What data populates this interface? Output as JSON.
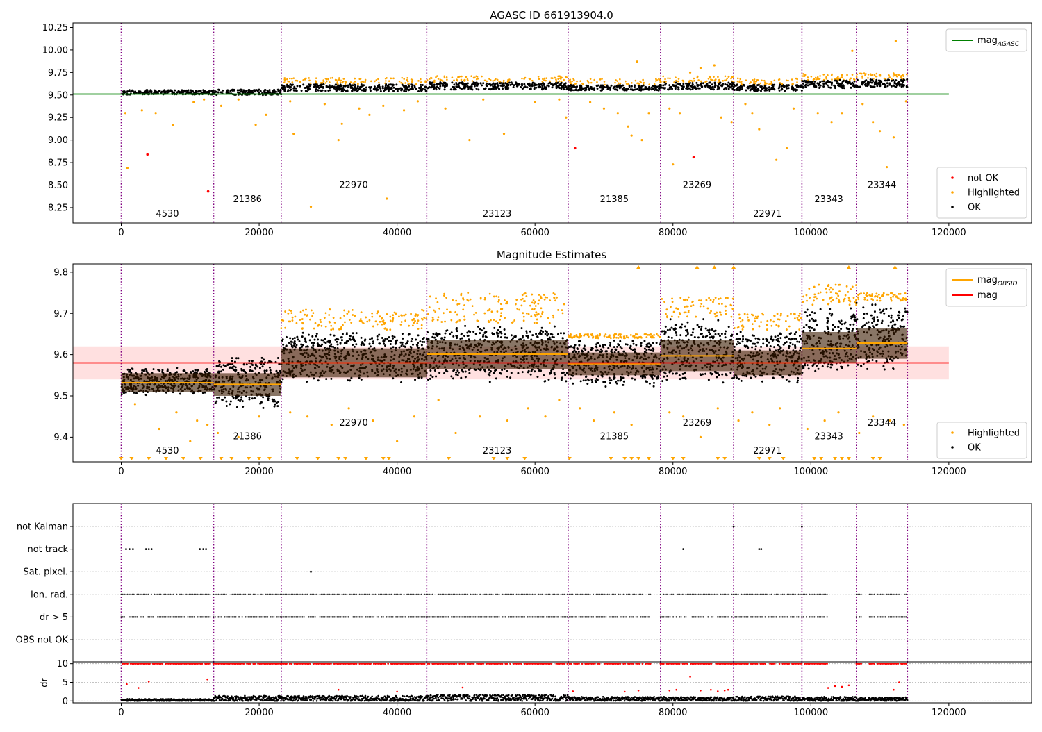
{
  "chart_data": [
    {
      "type": "scatter",
      "title": "AGASC ID 661913904.0",
      "xlim": [
        -7000,
        132000
      ],
      "ylim": [
        8.08,
        10.3
      ],
      "xticks": [
        0,
        20000,
        40000,
        60000,
        80000,
        100000,
        120000
      ],
      "yticks": [
        8.25,
        8.5,
        8.75,
        9.0,
        9.25,
        9.5,
        9.75,
        10.0,
        10.25
      ],
      "ytick_labels": [
        "8.25",
        "8.50",
        "8.75",
        "9.00",
        "9.25",
        "9.50",
        "9.75",
        "10.00",
        "10.25"
      ],
      "boundaries": [
        0,
        13400,
        23200,
        44300,
        64800,
        78200,
        88800,
        98700,
        106600,
        114000
      ],
      "obsids": [
        {
          "label": "4530",
          "x": 6700,
          "y": 8.15
        },
        {
          "label": "21386",
          "x": 18300,
          "y": 8.31
        },
        {
          "label": "22970",
          "x": 33700,
          "y": 8.47
        },
        {
          "label": "23123",
          "x": 54500,
          "y": 8.15
        },
        {
          "label": "21385",
          "x": 71500,
          "y": 8.31
        },
        {
          "label": "23269",
          "x": 83500,
          "y": 8.47
        },
        {
          "label": "22971",
          "x": 93700,
          "y": 8.15
        },
        {
          "label": "23343",
          "x": 102600,
          "y": 8.31
        },
        {
          "label": "23344",
          "x": 110300,
          "y": 8.47
        }
      ],
      "mag_agasc": 9.51,
      "mag_agasc_range": [
        -7000,
        120000
      ],
      "segments": [
        {
          "x0": 0,
          "x1": 13400,
          "y": 9.53,
          "spread": 0.025
        },
        {
          "x0": 13400,
          "x1": 23200,
          "y": 9.53,
          "spread": 0.03
        },
        {
          "x0": 23200,
          "x1": 44300,
          "y": 9.58,
          "spread": 0.04
        },
        {
          "x0": 44300,
          "x1": 64800,
          "y": 9.6,
          "spread": 0.04
        },
        {
          "x0": 64800,
          "x1": 78200,
          "y": 9.58,
          "spread": 0.03
        },
        {
          "x0": 78200,
          "x1": 88800,
          "y": 9.6,
          "spread": 0.04
        },
        {
          "x0": 88800,
          "x1": 98700,
          "y": 9.58,
          "spread": 0.035
        },
        {
          "x0": 98700,
          "x1": 106600,
          "y": 9.62,
          "spread": 0.045
        },
        {
          "x0": 106600,
          "x1": 114000,
          "y": 9.63,
          "spread": 0.045
        }
      ],
      "highlighted_points": [
        [
          600,
          9.3
        ],
        [
          900,
          8.69
        ],
        [
          3000,
          9.33
        ],
        [
          5000,
          9.3
        ],
        [
          7500,
          9.17
        ],
        [
          10500,
          9.42
        ],
        [
          12000,
          9.45
        ],
        [
          14500,
          9.38
        ],
        [
          17000,
          9.45
        ],
        [
          19500,
          9.17
        ],
        [
          21000,
          9.28
        ],
        [
          24500,
          9.43
        ],
        [
          25000,
          9.07
        ],
        [
          27500,
          8.26
        ],
        [
          29500,
          9.4
        ],
        [
          31500,
          9.0
        ],
        [
          32000,
          9.18
        ],
        [
          34500,
          9.35
        ],
        [
          36000,
          9.28
        ],
        [
          38000,
          9.38
        ],
        [
          38500,
          8.35
        ],
        [
          41000,
          9.33
        ],
        [
          43000,
          9.43
        ],
        [
          47000,
          9.35
        ],
        [
          50500,
          9.0
        ],
        [
          52500,
          9.45
        ],
        [
          55500,
          9.07
        ],
        [
          60000,
          9.42
        ],
        [
          63500,
          9.45
        ],
        [
          64500,
          9.25
        ],
        [
          68000,
          9.42
        ],
        [
          70000,
          9.35
        ],
        [
          72000,
          9.3
        ],
        [
          73500,
          9.15
        ],
        [
          74000,
          9.05
        ],
        [
          74800,
          9.87
        ],
        [
          75500,
          9.0
        ],
        [
          76500,
          9.3
        ],
        [
          79500,
          9.35
        ],
        [
          80000,
          8.73
        ],
        [
          81000,
          9.3
        ],
        [
          82500,
          9.75
        ],
        [
          84000,
          9.8
        ],
        [
          86000,
          9.83
        ],
        [
          87000,
          9.25
        ],
        [
          88500,
          9.2
        ],
        [
          90500,
          9.4
        ],
        [
          91500,
          9.3
        ],
        [
          92500,
          9.12
        ],
        [
          95000,
          8.78
        ],
        [
          96500,
          8.91
        ],
        [
          97500,
          9.35
        ],
        [
          101000,
          9.3
        ],
        [
          103000,
          9.2
        ],
        [
          104500,
          9.3
        ],
        [
          106000,
          9.99
        ],
        [
          107500,
          9.4
        ],
        [
          109000,
          9.2
        ],
        [
          110000,
          9.1
        ],
        [
          111000,
          8.7
        ],
        [
          112000,
          9.03
        ],
        [
          112300,
          10.1
        ],
        [
          113800,
          9.43
        ]
      ],
      "not_ok_points": [
        [
          3800,
          8.84
        ],
        [
          12600,
          8.43
        ],
        [
          65800,
          8.91
        ],
        [
          83000,
          8.81
        ]
      ],
      "legends": {
        "line": [
          {
            "label": "mag",
            "sub": "AGASC",
            "color": "#008000"
          }
        ],
        "points": [
          {
            "label": "not OK",
            "color": "#ff0000"
          },
          {
            "label": "Highlighted",
            "color": "#ffa500"
          },
          {
            "label": "OK",
            "color": "#000000"
          }
        ]
      }
    },
    {
      "type": "scatter",
      "title": "Magnitude Estimates",
      "xlim": [
        -7000,
        132000
      ],
      "ylim": [
        9.34,
        9.82
      ],
      "xticks": [
        0,
        20000,
        40000,
        60000,
        80000,
        100000,
        120000
      ],
      "yticks": [
        9.4,
        9.5,
        9.6,
        9.7,
        9.8
      ],
      "ytick_labels": [
        "9.4",
        "9.5",
        "9.6",
        "9.7",
        "9.8"
      ],
      "boundaries": [
        0,
        13400,
        23200,
        44300,
        64800,
        78200,
        88800,
        98700,
        106600,
        114000
      ],
      "obsids": [
        {
          "label": "4530",
          "x": 6700,
          "y": 9.36
        },
        {
          "label": "21386",
          "x": 18300,
          "y": 9.395
        },
        {
          "label": "22970",
          "x": 33700,
          "y": 9.428
        },
        {
          "label": "23123",
          "x": 54500,
          "y": 9.36
        },
        {
          "label": "21385",
          "x": 71500,
          "y": 9.395
        },
        {
          "label": "23269",
          "x": 83500,
          "y": 9.428
        },
        {
          "label": "22971",
          "x": 93700,
          "y": 9.36
        },
        {
          "label": "23343",
          "x": 102600,
          "y": 9.395
        },
        {
          "label": "23344",
          "x": 110300,
          "y": 9.428
        }
      ],
      "mag": 9.58,
      "mag_band": [
        9.54,
        9.62
      ],
      "mag_range": [
        -7000,
        120000
      ],
      "segments": [
        {
          "x0": 0,
          "x1": 13400,
          "mean": 9.532,
          "lo": 9.51,
          "hi": 9.555,
          "ok_lo": 9.5,
          "ok_hi": 9.57,
          "hl_hi": 9.59
        },
        {
          "x0": 13400,
          "x1": 23200,
          "mean": 9.528,
          "lo": 9.5,
          "hi": 9.555,
          "ok_lo": 9.465,
          "ok_hi": 9.6,
          "hl_hi": 9.62
        },
        {
          "x0": 23200,
          "x1": 44300,
          "mean": 9.58,
          "lo": 9.545,
          "hi": 9.615,
          "ok_lo": 9.53,
          "ok_hi": 9.66,
          "hl_hi": 9.71
        },
        {
          "x0": 44300,
          "x1": 64800,
          "mean": 9.601,
          "lo": 9.565,
          "hi": 9.635,
          "ok_lo": 9.53,
          "ok_hi": 9.675,
          "hl_hi": 9.75
        },
        {
          "x0": 64800,
          "x1": 78200,
          "mean": 9.578,
          "lo": 9.55,
          "hi": 9.605,
          "ok_lo": 9.52,
          "ok_hi": 9.64,
          "hl_hi": 9.65
        },
        {
          "x0": 78200,
          "x1": 88800,
          "mean": 9.597,
          "lo": 9.56,
          "hi": 9.635,
          "ok_lo": 9.53,
          "ok_hi": 9.69,
          "hl_hi": 9.74
        },
        {
          "x0": 88800,
          "x1": 98700,
          "mean": 9.58,
          "lo": 9.55,
          "hi": 9.61,
          "ok_lo": 9.53,
          "ok_hi": 9.66,
          "hl_hi": 9.7
        },
        {
          "x0": 98700,
          "x1": 106600,
          "mean": 9.615,
          "lo": 9.58,
          "hi": 9.655,
          "ok_lo": 9.55,
          "ok_hi": 9.72,
          "hl_hi": 9.77
        },
        {
          "x0": 106600,
          "x1": 114000,
          "mean": 9.628,
          "lo": 9.59,
          "hi": 9.665,
          "ok_lo": 9.56,
          "ok_hi": 9.73,
          "hl_hi": 9.75
        }
      ],
      "highlighted_outliers": [
        [
          2000,
          9.48
        ],
        [
          5500,
          9.42
        ],
        [
          8000,
          9.46
        ],
        [
          10000,
          9.39
        ],
        [
          11000,
          9.44
        ],
        [
          12500,
          9.43
        ],
        [
          14000,
          9.41
        ],
        [
          17000,
          9.4
        ],
        [
          20000,
          9.45
        ],
        [
          24500,
          9.46
        ],
        [
          27000,
          9.45
        ],
        [
          30500,
          9.43
        ],
        [
          33000,
          9.47
        ],
        [
          36500,
          9.44
        ],
        [
          40000,
          9.39
        ],
        [
          42500,
          9.45
        ],
        [
          46000,
          9.49
        ],
        [
          48500,
          9.41
        ],
        [
          52000,
          9.45
        ],
        [
          56000,
          9.44
        ],
        [
          59000,
          9.47
        ],
        [
          61500,
          9.45
        ],
        [
          63500,
          9.49
        ],
        [
          66500,
          9.47
        ],
        [
          68500,
          9.44
        ],
        [
          71500,
          9.46
        ],
        [
          74000,
          9.43
        ],
        [
          79500,
          9.46
        ],
        [
          81500,
          9.45
        ],
        [
          84000,
          9.4
        ],
        [
          86500,
          9.47
        ],
        [
          89500,
          9.44
        ],
        [
          91500,
          9.46
        ],
        [
          94000,
          9.43
        ],
        [
          95500,
          9.47
        ],
        [
          99500,
          9.42
        ],
        [
          102000,
          9.44
        ],
        [
          104000,
          9.46
        ],
        [
          107000,
          9.41
        ],
        [
          109000,
          9.45
        ],
        [
          111500,
          9.44
        ],
        [
          113500,
          9.43
        ]
      ],
      "below_markers": [
        0,
        1500,
        4000,
        6500,
        9000,
        11500,
        14500,
        16000,
        18500,
        20000,
        21500,
        25500,
        28500,
        31500,
        32500,
        35500,
        38000,
        38800,
        47500,
        54000,
        56000,
        58500,
        65000,
        71000,
        73000,
        74000,
        75000,
        76500,
        80000,
        81500,
        86500,
        87500,
        92500,
        94000,
        96000,
        100500,
        101500,
        103500,
        104500,
        105500,
        109000,
        110000
      ],
      "above_markers": [
        75000,
        83500,
        86000,
        88800,
        105500,
        112200
      ],
      "legends": {
        "line": [
          {
            "label": "mag",
            "sub": "OBSID",
            "color": "#ffa500"
          },
          {
            "label": "mag",
            "sub": "",
            "color": "#ff0000"
          }
        ],
        "points": [
          {
            "label": "Highlighted",
            "color": "#ffa500"
          },
          {
            "label": "OK",
            "color": "#000000"
          }
        ]
      }
    },
    {
      "type": "scatter",
      "title": "",
      "xlim": [
        -7000,
        132000
      ],
      "categories": [
        "not Kalman",
        "not track",
        "Sat. pixel.",
        "Ion. rad.",
        "dr > 5",
        "OBS not OK"
      ],
      "boundaries": [
        0,
        13400,
        23200,
        44300,
        64800,
        78200,
        88800,
        98700,
        106600,
        114000
      ],
      "flag_runs": {
        "Ion. rad.": [
          [
            0,
            13000
          ],
          [
            13400,
            64800
          ],
          [
            65000,
            76800
          ],
          [
            78200,
            102500
          ],
          [
            106600,
            107500
          ],
          [
            108500,
            114000
          ]
        ],
        "dr > 5": [
          [
            0,
            13000
          ],
          [
            13400,
            64800
          ],
          [
            65000,
            76800
          ],
          [
            78200,
            102500
          ],
          [
            106600,
            107500
          ],
          [
            108500,
            114000
          ]
        ]
      },
      "flag_points": {
        "not Kalman": [
          88800,
          98700
        ],
        "not track": [
          700,
          1200,
          1700,
          3600,
          4000,
          4400,
          11400,
          11900,
          12300,
          81500,
          92500,
          92800
        ],
        "Sat. pixel.": [
          27500
        ]
      }
    },
    {
      "type": "scatter",
      "xlim": [
        -7000,
        132000
      ],
      "ylim": [
        -0.5,
        10.5
      ],
      "ylabel": "dr",
      "yticks": [
        0,
        5,
        10
      ],
      "ytick_labels": [
        "0",
        "5",
        "10"
      ],
      "xticks": [
        0,
        20000,
        40000,
        60000,
        80000,
        100000,
        120000
      ],
      "xtick_labels": [
        "0",
        "20000",
        "40000",
        "60000",
        "80000",
        "100000",
        "120000"
      ],
      "boundaries": [
        0,
        13400,
        23200,
        44300,
        64800,
        78200,
        88800,
        98700,
        106600,
        114000
      ],
      "dr_ok_levels": [
        0.4,
        1.0,
        1.0,
        1.2,
        0.8,
        0.8,
        0.9,
        0.8,
        0.7
      ],
      "dr_ten_runs": [
        [
          0,
          13000
        ],
        [
          13400,
          64800
        ],
        [
          65000,
          76800
        ],
        [
          78200,
          102500
        ],
        [
          106600,
          107500
        ],
        [
          108500,
          114000
        ]
      ],
      "dr_mid_points": [
        [
          800,
          4.5
        ],
        [
          2500,
          3.5
        ],
        [
          4000,
          5.2
        ],
        [
          12500,
          5.8
        ],
        [
          31500,
          3.0
        ],
        [
          40000,
          2.5
        ],
        [
          49500,
          3.6
        ],
        [
          65500,
          2.6
        ],
        [
          73000,
          2.5
        ],
        [
          75000,
          2.8
        ],
        [
          79500,
          2.8
        ],
        [
          80500,
          3.0
        ],
        [
          82500,
          6.5
        ],
        [
          84000,
          2.8
        ],
        [
          85500,
          3.0
        ],
        [
          86500,
          2.6
        ],
        [
          87500,
          2.8
        ],
        [
          88000,
          3.0
        ],
        [
          102500,
          3.5
        ],
        [
          103500,
          4.0
        ],
        [
          104500,
          3.8
        ],
        [
          105500,
          4.2
        ],
        [
          112000,
          3.0
        ],
        [
          112800,
          5.0
        ]
      ]
    }
  ]
}
